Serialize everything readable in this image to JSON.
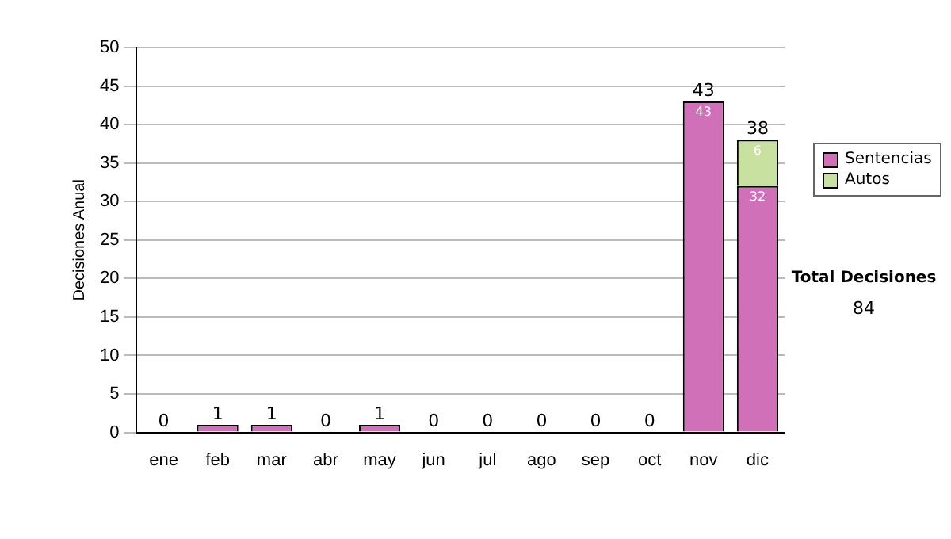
{
  "chart_data": {
    "type": "bar",
    "stacked": true,
    "ylabel": "Decisiones Anual",
    "categories": [
      "ene",
      "feb",
      "mar",
      "abr",
      "may",
      "jun",
      "jul",
      "ago",
      "sep",
      "oct",
      "nov",
      "dic"
    ],
    "series": [
      {
        "name": "Sentencias",
        "color": "#d070b8",
        "values": [
          0,
          1,
          1,
          0,
          1,
          0,
          0,
          0,
          0,
          0,
          43,
          32
        ],
        "value_labels": [
          null,
          null,
          null,
          null,
          null,
          null,
          null,
          null,
          null,
          null,
          "43",
          "32"
        ]
      },
      {
        "name": "Autos",
        "color": "#c8e0a0",
        "values": [
          0,
          0,
          0,
          0,
          0,
          0,
          0,
          0,
          0,
          0,
          0,
          6
        ],
        "value_labels": [
          null,
          null,
          null,
          null,
          null,
          null,
          null,
          null,
          null,
          null,
          null,
          "6"
        ]
      }
    ],
    "totals": [
      "0",
      "1",
      "1",
      "0",
      "1",
      "0",
      "0",
      "0",
      "0",
      "0",
      "43",
      "38"
    ],
    "ylim": [
      0,
      50
    ],
    "yticks": [
      0,
      5,
      10,
      15,
      20,
      25,
      30,
      35,
      40,
      45,
      50
    ],
    "grid": "y",
    "legend": "right",
    "annotations": [
      "Total Decisiones",
      "84"
    ]
  }
}
